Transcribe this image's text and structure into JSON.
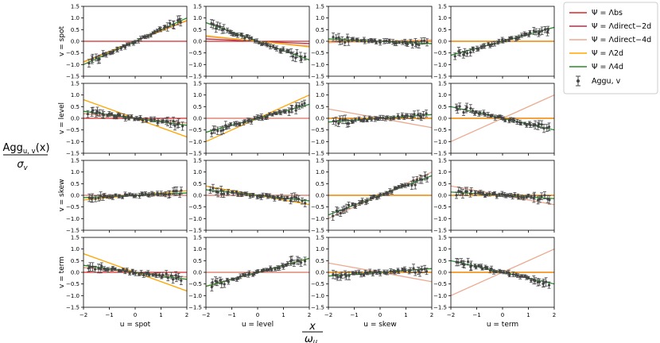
{
  "chart_data": {
    "type": "scatter",
    "layout": "4x4 grid of subplots",
    "xlim": [
      -2,
      2
    ],
    "ylim": [
      -1.5,
      1.5
    ],
    "xticks": [
      "−2",
      "−1",
      "0",
      "1",
      "2"
    ],
    "yticks": [
      "1.5",
      "1.0",
      "0.5",
      "0.0",
      "−0.5",
      "−1.0",
      "−1.5"
    ],
    "row_labels": [
      "v = spot",
      "v = level",
      "v = skew",
      "v = term"
    ],
    "col_labels": [
      "u = spot",
      "u = level",
      "u = skew",
      "u = term"
    ],
    "figure_ylabel": "Agg_{u,v}(x) / σ_v",
    "figure_xlabel": "x / ω_u",
    "legend_position": "top-right outside",
    "series": [
      {
        "name": "Ψ = Λ_bs",
        "color": "#d62728",
        "kind": "line"
      },
      {
        "name": "Ψ = Λ_direct−2d",
        "color": "#a8324a",
        "kind": "line"
      },
      {
        "name": "Ψ = Λ_direct−4d",
        "color": "#eba98e",
        "kind": "line"
      },
      {
        "name": "Ψ = Λ_2d",
        "color": "#ffa500",
        "kind": "line"
      },
      {
        "name": "Ψ = Λ_4d",
        "color": "#2a8a2a",
        "kind": "line"
      },
      {
        "name": "Agg_{u,v}",
        "color": "#444444",
        "kind": "errorbar points"
      }
    ],
    "slopes": {
      "note": "line slope per panel [row][col], lines pass through origin",
      "bs": [
        [
          0.0,
          0.0,
          0.0,
          0.0
        ],
        [
          0.0,
          0.0,
          0.0,
          0.0
        ],
        [
          0.0,
          0.0,
          0.0,
          0.0
        ],
        [
          0.0,
          0.0,
          0.0,
          0.0
        ]
      ],
      "d2": [
        [
          0.44,
          -0.05,
          0.0,
          0.0
        ],
        [
          -0.1,
          0.0,
          0.0,
          0.0
        ],
        [
          0.0,
          0.0,
          0.0,
          0.0
        ],
        [
          -0.1,
          0.0,
          0.0,
          0.0
        ]
      ],
      "d4": [
        [
          0.44,
          -0.1,
          0.03,
          0.0
        ],
        [
          -0.1,
          0.0,
          -0.2,
          0.5
        ],
        [
          0.0,
          0.0,
          0.5,
          -0.2
        ],
        [
          -0.1,
          0.0,
          -0.2,
          0.5
        ]
      ],
      "n2": [
        [
          0.45,
          -0.12,
          0.0,
          0.0
        ],
        [
          -0.4,
          0.5,
          0.0,
          0.0
        ],
        [
          0.1,
          -0.2,
          0.0,
          0.0
        ],
        [
          -0.4,
          0.3,
          0.0,
          0.0
        ]
      ],
      "n4": [
        [
          0.5,
          -0.4,
          -0.05,
          0.3
        ],
        [
          -0.15,
          0.3,
          0.08,
          -0.25
        ],
        [
          0.05,
          -0.12,
          0.42,
          -0.07
        ],
        [
          -0.15,
          0.3,
          0.08,
          -0.25
        ]
      ]
    },
    "points_per_panel": 42,
    "point_x_range": [
      -1.8,
      1.8
    ]
  },
  "legend": {
    "bs": "Ψ = Λbs",
    "d2": "Ψ = Λdirect−2d",
    "d4": "Ψ = Λdirect−4d",
    "n2": "Ψ = Λ2d",
    "n4": "Ψ = Λ4d",
    "agg": "Aggu, v"
  },
  "labels": {
    "ylabel_num": "Agg",
    "ylabel_sub": "u, v",
    "ylabel_tail": "(x)",
    "ylabel_den": "σ",
    "ylabel_den_sub": "v",
    "xlabel_num": "x",
    "xlabel_den": "ω",
    "xlabel_den_sub": "u"
  }
}
